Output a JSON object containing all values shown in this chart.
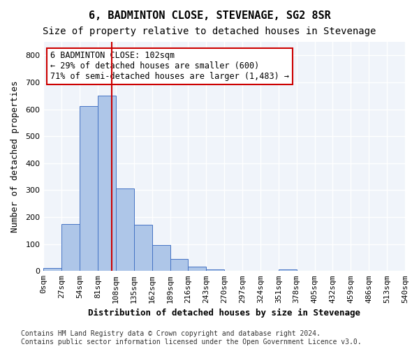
{
  "title": "6, BADMINTON CLOSE, STEVENAGE, SG2 8SR",
  "subtitle": "Size of property relative to detached houses in Stevenage",
  "xlabel": "Distribution of detached houses by size in Stevenage",
  "ylabel": "Number of detached properties",
  "footer_line1": "Contains HM Land Registry data © Crown copyright and database right 2024.",
  "footer_line2": "Contains public sector information licensed under the Open Government Licence v3.0.",
  "bin_edges": [
    0,
    27,
    54,
    81,
    108,
    135,
    162,
    189,
    216,
    243,
    270,
    297,
    324,
    351,
    378,
    405,
    432,
    459,
    486,
    513,
    540
  ],
  "bar_heights": [
    10,
    175,
    612,
    650,
    305,
    172,
    97,
    45,
    15,
    5,
    0,
    0,
    0,
    5,
    0,
    0,
    0,
    0,
    0,
    0
  ],
  "bar_color": "#aec6e8",
  "bar_edge_color": "#4472c4",
  "vline_x": 102,
  "vline_color": "#cc0000",
  "annotation_text": "6 BADMINTON CLOSE: 102sqm\n← 29% of detached houses are smaller (600)\n71% of semi-detached houses are larger (1,483) →",
  "annotation_box_color": "#cc0000",
  "ylim": [
    0,
    850
  ],
  "yticks": [
    0,
    100,
    200,
    300,
    400,
    500,
    600,
    700,
    800
  ],
  "background_color": "#f0f4fa",
  "grid_color": "#ffffff",
  "title_fontsize": 11,
  "subtitle_fontsize": 10,
  "xlabel_fontsize": 9,
  "ylabel_fontsize": 9,
  "tick_fontsize": 8,
  "annotation_fontsize": 8.5,
  "footer_fontsize": 7
}
